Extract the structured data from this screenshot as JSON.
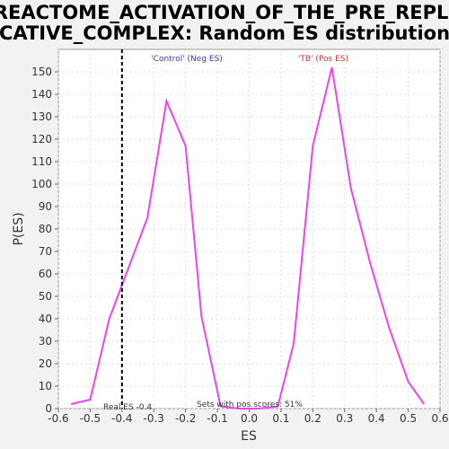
{
  "chart_data": {
    "type": "line",
    "title_line1": "REACTOME_ACTIVATION_OF_THE_PRE_REPLI",
    "title_line2": "CATIVE_COMPLEX: Random ES distribution",
    "xlabel": "ES",
    "ylabel": "P(ES)",
    "xlim": [
      -0.6,
      0.6
    ],
    "ylim": [
      0,
      160
    ],
    "x_ticks": [
      -0.6,
      -0.5,
      -0.4,
      -0.3,
      -0.2,
      -0.1,
      0.0,
      0.1,
      0.2,
      0.3,
      0.4,
      0.5,
      0.6
    ],
    "x_tick_labels": [
      "-0.6",
      "-0.5",
      "-0.4",
      "-0.3",
      "-0.2",
      "-0.1",
      "0.0",
      "0.1",
      "0.2",
      "0.3",
      "0.4",
      "0.5",
      "0.6"
    ],
    "y_ticks": [
      0,
      10,
      20,
      30,
      40,
      50,
      60,
      70,
      80,
      90,
      100,
      110,
      120,
      130,
      140,
      150
    ],
    "y_tick_labels": [
      "0",
      "10",
      "20",
      "30",
      "40",
      "50",
      "60",
      "70",
      "80",
      "90",
      "100",
      "110",
      "120",
      "130",
      "140",
      "150"
    ],
    "grid": true,
    "series": [
      {
        "color": "#ee44ee",
        "x": [
          -0.56,
          -0.5,
          -0.44,
          -0.32,
          -0.26,
          -0.2,
          -0.15,
          -0.09,
          -0.03,
          0.03,
          0.09,
          0.14,
          0.2,
          0.26,
          0.32,
          0.38,
          0.44,
          0.5,
          0.55
        ],
        "y": [
          2,
          4,
          40,
          85,
          137,
          117,
          41,
          1,
          0,
          0,
          1,
          29,
          117,
          152,
          98,
          65,
          36,
          12,
          2
        ]
      }
    ],
    "real_es": -0.4,
    "annotations": {
      "neg_label": "'Control' (Neg ES)",
      "pos_label": "'TB' (Pos ES)",
      "real_es_label": "Real ES -0.4",
      "pos_scores_label": "Sets with pos scores: 51%"
    },
    "colors": {
      "line": "#ee44ee",
      "neg_label": "#3333cc",
      "pos_label": "#cc3333",
      "grid": "#dddddd",
      "plot_bg": "#ffffff",
      "page_bg": "#f2f2f2"
    }
  }
}
